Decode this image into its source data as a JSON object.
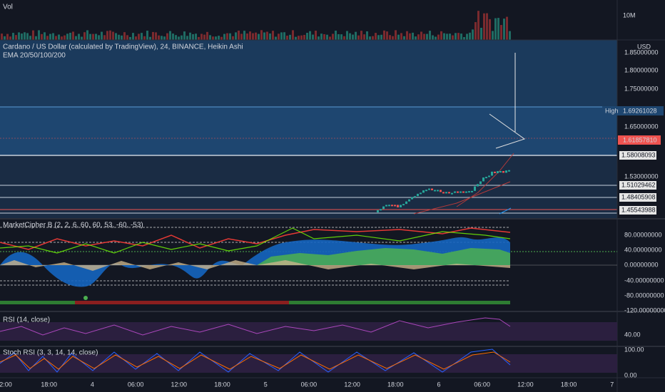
{
  "volume_pane": {
    "title": "Vol",
    "axis_label": "10M"
  },
  "price_pane": {
    "title": "Cardano / US Dollar (calculated by TradingView), 24, BINANCE, Heikin Ashi",
    "indicator": "EMA 20/50/100/200",
    "currency": "USD",
    "axis_labels": [
      "1.85000000",
      "1.80000000",
      "1.75000000",
      "1.65000000",
      "1.53000000"
    ],
    "high_label": "High",
    "high_value": "1.69261028",
    "current_price": "1.61857810",
    "levels": [
      "1.58008093",
      "1.51029462",
      "1.48405908",
      "1.45543988"
    ]
  },
  "cipher_pane": {
    "title": "MarketCipher B (2, 2, 6, 60, 60, 53, -60, -53)",
    "axis_labels": [
      "80.00000000",
      "40.00000000",
      "0.00000000",
      "-40.00000000",
      "-80.00000000",
      "-120.00000000"
    ]
  },
  "rsi_pane": {
    "title": "RSI (14, close)",
    "axis_labels": [
      "40.00"
    ]
  },
  "stoch_pane": {
    "title": "Stoch RSI (3, 3, 14, 14, close)",
    "axis_labels": [
      "100.00",
      "0.00"
    ]
  },
  "time_axis": [
    "2:00",
    "18:00",
    "4",
    "06:00",
    "12:00",
    "18:00",
    "5",
    "06:00",
    "12:00",
    "18:00",
    "6",
    "06:00",
    "12:00",
    "18:00",
    "7"
  ]
}
